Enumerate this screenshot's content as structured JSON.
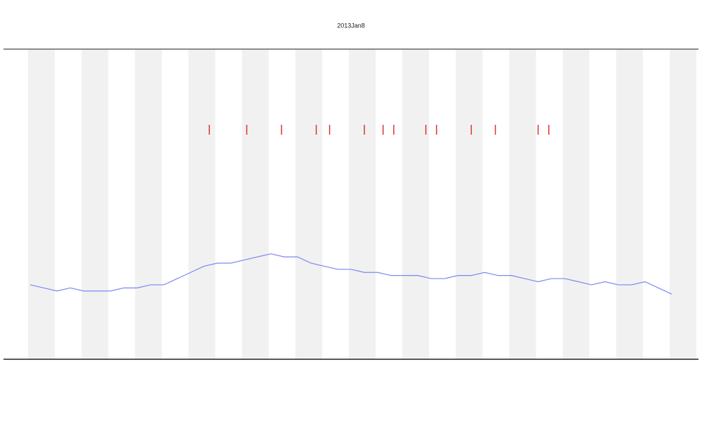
{
  "chart_data": {
    "type": "line",
    "title": "2013Jan8",
    "xlim": [
      -1,
      25
    ],
    "ylim": [
      0,
      100
    ],
    "series": [
      {
        "color": "#7f86f0",
        "x": [
          0,
          0.5,
          1,
          1.5,
          2,
          2.5,
          3,
          3.5,
          4,
          4.5,
          5,
          5.5,
          6,
          6.5,
          7,
          7.5,
          8,
          8.5,
          9,
          9.5,
          10,
          10.5,
          11,
          11.5,
          12,
          12.5,
          13,
          13.5,
          14,
          14.5,
          15,
          15.5,
          16,
          16.5,
          17,
          17.5,
          18,
          18.5,
          19,
          19.5,
          20,
          20.5,
          21,
          21.5,
          22,
          22.5,
          23,
          23.5,
          24
        ],
        "values": [
          24,
          23,
          22,
          23,
          22,
          22,
          22,
          23,
          23,
          24,
          24,
          26,
          28,
          30,
          31,
          31,
          32,
          33,
          34,
          33,
          33,
          31,
          30,
          29,
          29,
          28,
          28,
          27,
          27,
          27,
          26,
          26,
          27,
          27,
          28,
          27,
          27,
          26,
          25,
          26,
          26,
          25,
          24,
          25,
          24,
          24,
          25,
          23,
          21
        ]
      },
      {
        "color": "#e03030",
        "mark": "tick",
        "x": [
          6.7,
          8.1,
          9.4,
          10.7,
          11.2,
          12.5,
          13.2,
          13.6,
          14.8,
          15.2,
          16.5,
          17.4,
          19.0,
          19.4
        ],
        "values": [
          74,
          74,
          74,
          74,
          74,
          74,
          74,
          74,
          74,
          74,
          74,
          74,
          74,
          74
        ]
      }
    ]
  }
}
